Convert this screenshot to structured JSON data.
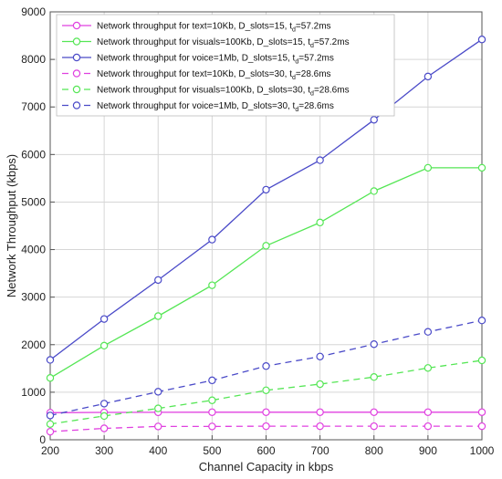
{
  "chart_data": {
    "type": "line",
    "xlabel": "Channel Capacity in kbps",
    "ylabel": "Network Throughput (kbps)",
    "xlim": [
      200,
      1000
    ],
    "ylim": [
      0,
      9000
    ],
    "xticks": [
      200,
      300,
      400,
      500,
      600,
      700,
      800,
      900,
      1000
    ],
    "yticks": [
      0,
      1000,
      2000,
      3000,
      4000,
      5000,
      6000,
      7000,
      8000,
      9000
    ],
    "grid": true,
    "legend_position": "top-left",
    "x": [
      200,
      300,
      400,
      500,
      600,
      700,
      800,
      900,
      1000
    ],
    "series": [
      {
        "legend": {
          "pre": "Network throughput for text=10Kb, D_slots=15, t",
          "sub": "d",
          "post": "=57.2ms"
        },
        "color": "#e040e0",
        "dash": "solid",
        "values": [
          570,
          575,
          578,
          580,
          580,
          580,
          580,
          580,
          580
        ]
      },
      {
        "legend": {
          "pre": "Network throughput for visuals=100Kb, D_slots=15, t",
          "sub": "d",
          "post": "=57.2ms"
        },
        "color": "#55e655",
        "dash": "solid",
        "values": [
          1300,
          1980,
          2600,
          3250,
          4080,
          4570,
          5230,
          5720,
          5720
        ]
      },
      {
        "legend": {
          "pre": "Network throughput for voice=1Mb, D_slots=15, t",
          "sub": "d",
          "post": "=57.2ms"
        },
        "color": "#4a4ac8",
        "dash": "solid",
        "values": [
          1680,
          2540,
          3360,
          4210,
          5260,
          5880,
          6730,
          7640,
          8420
        ]
      },
      {
        "legend": {
          "pre": "Network throughput for text=10Kb, D_slots=30, t",
          "sub": "d",
          "post": "=28.6ms"
        },
        "color": "#e040e0",
        "dash": "dashed",
        "values": [
          170,
          240,
          280,
          280,
          285,
          285,
          285,
          285,
          285
        ]
      },
      {
        "legend": {
          "pre": "Network throughput for visuals=100Kb, D_slots=30, t",
          "sub": "d",
          "post": "=28.6ms"
        },
        "color": "#55e655",
        "dash": "dashed",
        "values": [
          330,
          500,
          660,
          830,
          1040,
          1170,
          1320,
          1510,
          1670
        ]
      },
      {
        "legend": {
          "pre": "Network throughput for voice=1Mb, D_slots=30, t",
          "sub": "d",
          "post": "=28.6ms"
        },
        "color": "#4a4ac8",
        "dash": "dashed",
        "values": [
          510,
          760,
          1010,
          1250,
          1550,
          1750,
          2010,
          2270,
          2510
        ]
      }
    ]
  }
}
